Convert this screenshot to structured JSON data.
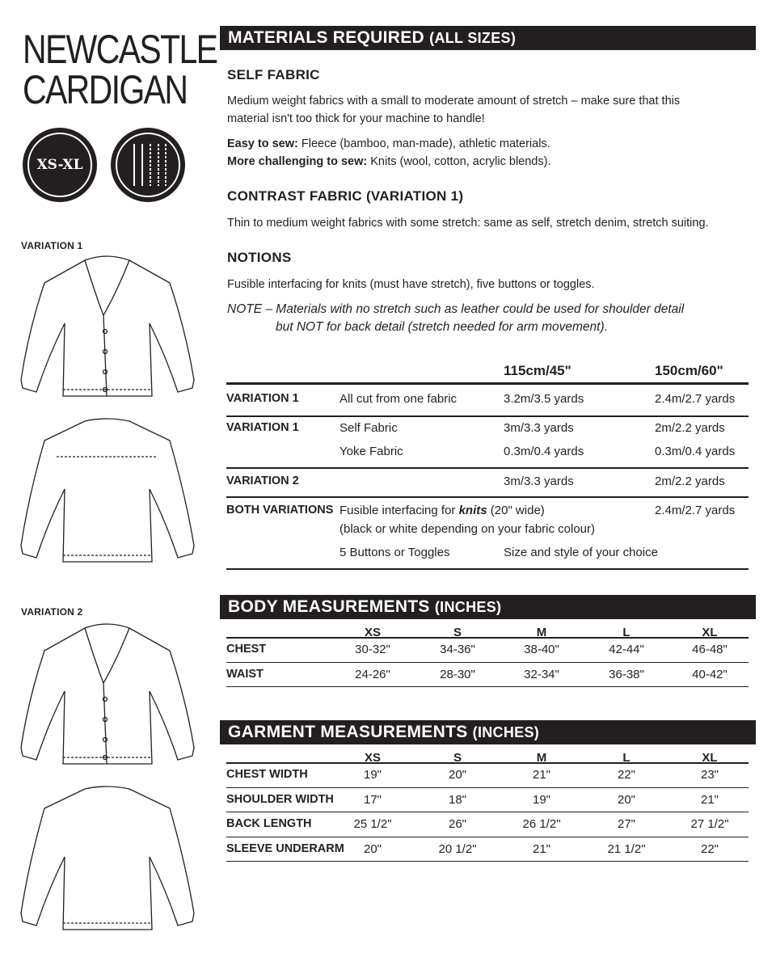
{
  "title": {
    "line1": "NEWCASTLE",
    "line2": "CARDIGAN"
  },
  "badges": {
    "size": "XS-XL",
    "needles": "needles-icon"
  },
  "variations": {
    "v1": "VARIATION 1",
    "v2": "VARIATION 2"
  },
  "materials": {
    "header": "MATERIALS REQUIRED",
    "header_sub": "(ALL SIZES)",
    "self_heading": "SELF FABRIC",
    "self_text1": "Medium weight fabrics with a small to moderate amount of stretch – make sure that this",
    "self_text2": "material isn't too thick for your machine to handle!",
    "easy_label": "Easy to sew:",
    "easy_text": " Fleece (bamboo, man-made), athletic materials.",
    "hard_label": "More challenging to sew:",
    "hard_text": " Knits (wool, cotton, acrylic blends).",
    "contrast_heading": "CONTRAST FABRIC (VARIATION 1)",
    "contrast_text": "Thin to medium weight fabrics with some stretch: same as self, stretch denim, stretch suiting.",
    "notions_heading": "NOTIONS",
    "notions_text": "Fusible interfacing for knits (must have stretch), five buttons or toggles.",
    "note1": "NOTE – Materials with no stretch such as leather could be used for shoulder detail",
    "note2": "but NOT for back detail (stretch needed for arm movement)."
  },
  "yardage": {
    "columns": [
      "115cm/45\"",
      "150cm/60\""
    ],
    "rows": [
      {
        "label": "VARIATION 1",
        "desc": "All cut from one fabric",
        "a": "3.2m/3.5 yards",
        "b": "2.4m/2.7 yards"
      },
      {
        "label": "VARIATION 1",
        "desc": "Self Fabric",
        "a": "3m/3.3 yards",
        "b": "2m/2.2 yards"
      },
      {
        "label": "",
        "desc": "Yoke Fabric",
        "a": "0.3m/0.4 yards",
        "b": "0.3m/0.4 yards"
      },
      {
        "label": "VARIATION 2",
        "desc": "",
        "a": "3m/3.3 yards",
        "b": "2m/2.2 yards"
      },
      {
        "label": "BOTH VARIATIONS",
        "desc_pre": "Fusible interfacing for ",
        "desc_em": "knits",
        "desc_post": " (20\" wide)",
        "desc2": "(black or white depending on your fabric colour)",
        "b": "2.4m/2.7 yards"
      },
      {
        "label": "",
        "desc": "5 Buttons or Toggles",
        "a": "Size and style of your choice"
      }
    ]
  },
  "body": {
    "header": "BODY MEASUREMENTS",
    "header_sub": "(INCHES)",
    "sizes": [
      "XS",
      "S",
      "M",
      "L",
      "XL"
    ],
    "rows": [
      {
        "label": "CHEST",
        "values": [
          "30-32\"",
          "34-36\"",
          "38-40\"",
          "42-44\"",
          "46-48\""
        ]
      },
      {
        "label": "WAIST",
        "values": [
          "24-26\"",
          "28-30\"",
          "32-34\"",
          "36-38\"",
          "40-42\""
        ]
      }
    ]
  },
  "garment": {
    "header": "GARMENT MEASUREMENTS",
    "header_sub": "(INCHES)",
    "sizes": [
      "XS",
      "S",
      "M",
      "L",
      "XL"
    ],
    "rows": [
      {
        "label": "CHEST WIDTH",
        "values": [
          "19\"",
          "20\"",
          "21\"",
          "22\"",
          "23\""
        ]
      },
      {
        "label": "SHOULDER WIDTH",
        "values": [
          "17\"",
          "18\"",
          "19\"",
          "20\"",
          "21\""
        ]
      },
      {
        "label": "BACK LENGTH",
        "values": [
          "25 1/2\"",
          "26\"",
          "26 1/2\"",
          "27\"",
          "27 1/2\""
        ]
      },
      {
        "label": "SLEEVE UNDERARM",
        "values": [
          "20\"",
          "20 1/2\"",
          "21\"",
          "21 1/2\"",
          "22\""
        ]
      }
    ]
  }
}
